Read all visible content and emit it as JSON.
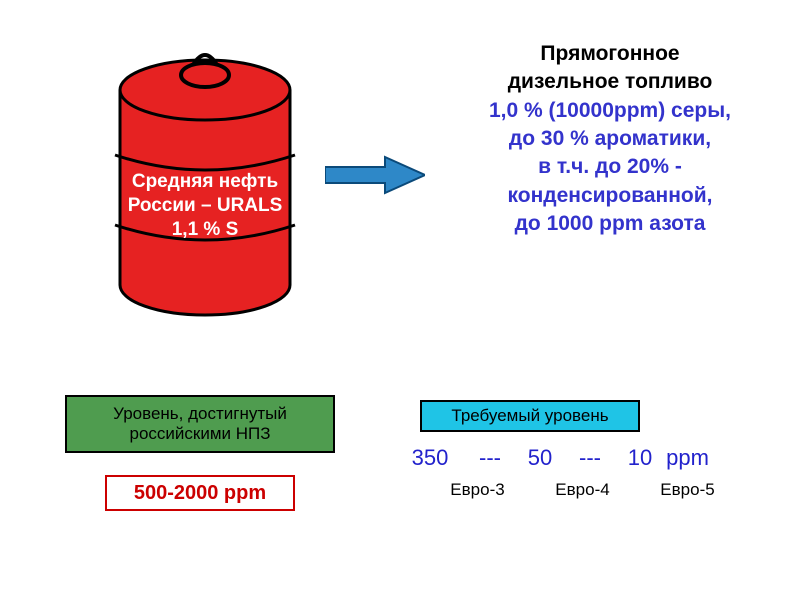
{
  "background_color": "#ffffff",
  "barrel": {
    "body_fill": "#e62222",
    "outline": "#000000",
    "outline_width": 3,
    "handle_fill": "#e62222",
    "text_line1": "Средняя нефть",
    "text_line2": "России – URALS",
    "text_line3": "1,1 % S",
    "text_color": "#ffffff",
    "text_fontsize": 19
  },
  "arrow": {
    "fill": "#2e88c8",
    "outline": "#0b4a7a",
    "outline_width": 2
  },
  "diesel": {
    "title_line1": "Прямогонное",
    "title_line2": "дизельное топливо",
    "title_color": "#000000",
    "spec_line1": "1,0 % (10000ppm) серы,",
    "spec_line2": "до 30 % ароматики,",
    "spec_line3": "в т.ч. до 20% -",
    "spec_line4": "конденсированной,",
    "spec_line5": "до 1000 ppm азота",
    "spec_color": "#3333cc",
    "fontsize": 21
  },
  "achieved": {
    "box_fill": "#4f9c4f",
    "box_border": "#000000",
    "box_border_width": 2,
    "text_color": "#000000",
    "line1": "Уровень, достигнутый",
    "line2": "российскими НПЗ",
    "value": "500-2000 ppm",
    "value_box_fill": "#ffffff",
    "value_box_border": "#cc0000",
    "value_box_border_width": 2,
    "value_text_color": "#cc0000"
  },
  "required": {
    "box_fill": "#1fc4e6",
    "box_border": "#000000",
    "box_border_width": 2,
    "label": "Требуемый уровень",
    "label_color": "#000000",
    "ppm_values": [
      "350",
      "50",
      "10"
    ],
    "ppm_sep": "---",
    "ppm_unit": "ppm",
    "ppm_color": "#2222cc",
    "ppm_fontsize": 22,
    "euro_labels": [
      "Евро-3",
      "Евро-4",
      "Евро-5"
    ],
    "euro_color": "#000000",
    "euro_fontsize": 17
  }
}
